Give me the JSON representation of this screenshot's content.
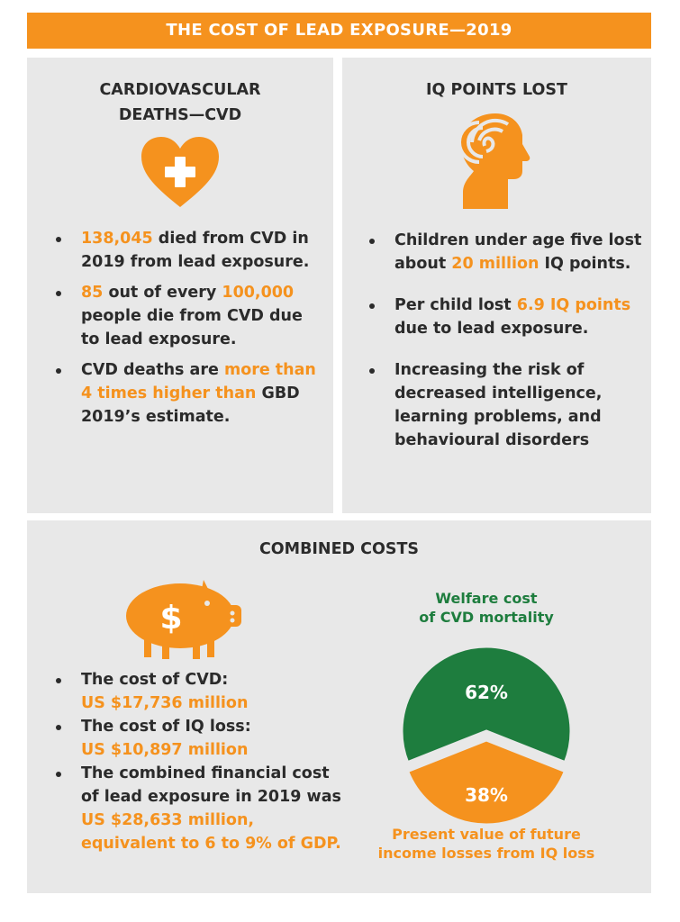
{
  "banner": {
    "title": "THE COST OF LEAD EXPOSURE—2019"
  },
  "cvd": {
    "title_line1": "CARDIOVASCULAR",
    "title_line2": "DEATHS—CVD",
    "icon": "heart-plus-icon",
    "bullets": [
      {
        "hl1": "138,045",
        "text1": " died from CVD in 2019 from lead exposure."
      },
      {
        "hl1": "85",
        "text1": " out of every ",
        "hl2": "100,000",
        "text2": " people die from CVD due to lead exposure."
      },
      {
        "text1": "CVD deaths are ",
        "hl1": "more than 4 times higher than",
        "text2": " GBD 2019’s estimate."
      }
    ]
  },
  "iq": {
    "title": "IQ POINTS LOST",
    "icon": "head-brain-icon",
    "bullets": [
      {
        "text1": "Children under age five lost about ",
        "hl1": "20 million",
        "text2": " IQ points."
      },
      {
        "text1": "Per child lost ",
        "hl1": "6.9 IQ points",
        "text2": " due to lead exposure."
      },
      {
        "text1": "Increasing the risk of decreased intelligence, learning problems, and behavioural disorders"
      }
    ]
  },
  "combined": {
    "title": "COMBINED COSTS",
    "icon": "piggy-bank-icon",
    "icon_symbol": "$",
    "bullets": [
      {
        "text1": "The cost of CVD:",
        "hl1": "US $17,736 million"
      },
      {
        "text1": "The cost of IQ loss:",
        "hl1": "US $10,897 million"
      },
      {
        "text1": "The combined financial cost of lead exposure in 2019 was ",
        "hl1": "US $28,633 million, equivalent to 6 to 9% of GDP."
      }
    ]
  },
  "colors": {
    "orange": "#f5921e",
    "green": "#1e7d3e",
    "panel": "#e8e8e8",
    "text": "#2b2b2b"
  },
  "chart_data": {
    "type": "pie",
    "title": "",
    "categories": [
      "Welfare cost of CVD mortality",
      "Present value of future income losses from IQ loss"
    ],
    "values": [
      62,
      38
    ],
    "labels": [
      "62%",
      "38%"
    ],
    "legend": {
      "welfare_line1": "Welfare cost",
      "welfare_line2": "of CVD mortality",
      "income_line1": "Present value of future",
      "income_line2": "income losses from IQ loss"
    },
    "colors": [
      "#1e7d3e",
      "#f5921e"
    ]
  }
}
